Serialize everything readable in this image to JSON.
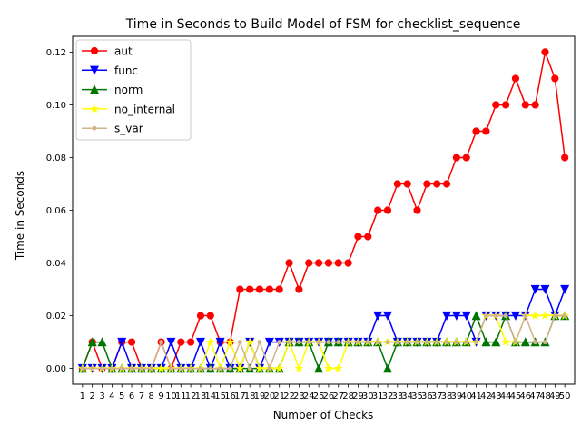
{
  "chart_data": {
    "type": "line",
    "title": "Time in Seconds to Build Model of FSM for checklist_sequence",
    "xlabel": "Number of Checks",
    "ylabel": "Time in Seconds",
    "x": [
      1,
      2,
      3,
      4,
      5,
      6,
      7,
      8,
      9,
      10,
      11,
      12,
      13,
      14,
      15,
      16,
      17,
      18,
      19,
      20,
      21,
      22,
      23,
      24,
      25,
      26,
      27,
      28,
      29,
      30,
      31,
      32,
      33,
      34,
      35,
      36,
      37,
      38,
      39,
      40,
      41,
      42,
      43,
      44,
      45,
      46,
      47,
      48,
      49,
      50
    ],
    "xlim": [
      0,
      51
    ],
    "ylim": [
      -0.006,
      0.126
    ],
    "yticks": [
      "0.00",
      "0.02",
      "0.04",
      "0.06",
      "0.08",
      "0.10",
      "0.12"
    ],
    "legend_position": "top-left",
    "grid": false,
    "series": [
      {
        "name": "aut",
        "color": "#ff0000",
        "marker": "circle",
        "values": [
          0,
          0.01,
          0,
          0,
          0.01,
          0.01,
          0,
          0,
          0.01,
          0,
          0.01,
          0.01,
          0.02,
          0.02,
          0.01,
          0.01,
          0.03,
          0.03,
          0.03,
          0.03,
          0.03,
          0.04,
          0.03,
          0.04,
          0.04,
          0.04,
          0.04,
          0.04,
          0.05,
          0.05,
          0.06,
          0.06,
          0.07,
          0.07,
          0.06,
          0.07,
          0.07,
          0.07,
          0.08,
          0.08,
          0.09,
          0.09,
          0.1,
          0.1,
          0.11,
          0.1,
          0.1,
          0.12,
          0.11,
          0.08
        ]
      },
      {
        "name": "func",
        "color": "#0000ff",
        "marker": "triangle-down",
        "values": [
          0,
          0,
          0,
          0,
          0.01,
          0,
          0,
          0,
          0,
          0.01,
          0,
          0,
          0.01,
          0,
          0.01,
          0,
          0,
          0.01,
          0,
          0.01,
          0.01,
          0.01,
          0.01,
          0.01,
          0.01,
          0.01,
          0.01,
          0.01,
          0.01,
          0.01,
          0.02,
          0.02,
          0.01,
          0.01,
          0.01,
          0.01,
          0.01,
          0.02,
          0.02,
          0.02,
          0.01,
          0.02,
          0.02,
          0.02,
          0.02,
          0.02,
          0.03,
          0.03,
          0.02,
          0.03
        ]
      },
      {
        "name": "norm",
        "color": "#007500",
        "marker": "triangle-up",
        "values": [
          0,
          0.01,
          0.01,
          0,
          0,
          0,
          0,
          0,
          0,
          0,
          0,
          0,
          0,
          0,
          0,
          0,
          0,
          0,
          0,
          0,
          0,
          0.01,
          0.01,
          0.01,
          0,
          0.01,
          0.01,
          0.01,
          0.01,
          0.01,
          0.01,
          0,
          0.01,
          0.01,
          0.01,
          0.01,
          0.01,
          0.01,
          0.01,
          0.01,
          0.02,
          0.01,
          0.01,
          0.02,
          0.01,
          0.01,
          0.01,
          0.01,
          0.02,
          0.02
        ]
      },
      {
        "name": "no_internal",
        "color": "#ffff00",
        "marker": "star",
        "values": [
          0,
          0,
          0,
          0,
          0,
          0,
          0,
          0,
          0,
          0,
          0,
          0,
          0,
          0.01,
          0,
          0.01,
          0,
          0.01,
          0,
          0,
          0,
          0.01,
          0,
          0.01,
          0.01,
          0,
          0,
          0.01,
          0.01,
          0.01,
          0.01,
          0.01,
          0.01,
          0.01,
          0.01,
          0.01,
          0.01,
          0.01,
          0.01,
          0.01,
          0.01,
          0.02,
          0.02,
          0.01,
          0.01,
          0.02,
          0.02,
          0.02,
          0.02,
          0.02
        ]
      },
      {
        "name": "s_var",
        "color": "#d2b48c",
        "marker": "point",
        "values": [
          0,
          0,
          0,
          0,
          0,
          0,
          0,
          0,
          0.01,
          0,
          0,
          0,
          0,
          0,
          0,
          0,
          0.01,
          0,
          0.01,
          0,
          0.01,
          0.01,
          0.01,
          0.01,
          0.01,
          0.01,
          0.01,
          0.01,
          0.01,
          0.01,
          0.01,
          0.01,
          0.01,
          0.01,
          0.01,
          0.01,
          0.01,
          0.01,
          0.01,
          0.01,
          0.01,
          0.02,
          0.02,
          0.02,
          0.01,
          0.02,
          0.01,
          0.01,
          0.02,
          0.02
        ]
      }
    ]
  }
}
